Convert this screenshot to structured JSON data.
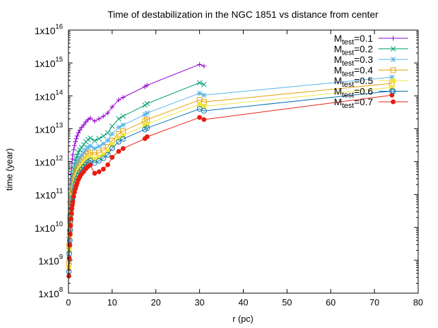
{
  "chart_data": {
    "type": "line",
    "title": "Time of destabilization in the NGC 1851 vs distance from center",
    "xlabel": "r (pc)",
    "ylabel": "time (year)",
    "xlim": [
      0,
      80
    ],
    "ylim": [
      100000000.0,
      1e+16
    ],
    "y_scale": "log",
    "grid": false,
    "legend_position": "top-right",
    "x_ticks": [
      "0",
      "10",
      "20",
      "30",
      "40",
      "50",
      "60",
      "70",
      "80"
    ],
    "y_ticks": [
      {
        "base": "1x10",
        "exp": "8"
      },
      {
        "base": "1x10",
        "exp": "9"
      },
      {
        "base": "1x10",
        "exp": "10"
      },
      {
        "base": "1x10",
        "exp": "11"
      },
      {
        "base": "1x10",
        "exp": "12"
      },
      {
        "base": "1x10",
        "exp": "13"
      },
      {
        "base": "1x10",
        "exp": "14"
      },
      {
        "base": "1x10",
        "exp": "15"
      },
      {
        "base": "1x10",
        "exp": "16"
      }
    ],
    "x": [
      0.1,
      0.2,
      0.3,
      0.4,
      0.5,
      0.6,
      0.7,
      0.8,
      0.9,
      1.0,
      1.2,
      1.4,
      1.6,
      1.8,
      2.0,
      2.3,
      2.6,
      3.0,
      3.5,
      4.0,
      4.5,
      5.0,
      6.0,
      7.0,
      8.0,
      9.0,
      10.0,
      11.5,
      12.5,
      17.5,
      18.0,
      30.0,
      31.0,
      74.0
    ],
    "series": [
      {
        "name_main": "M",
        "name_sub": "test",
        "name_tail": "=0.1",
        "color": "#9400d3",
        "marker": "plus",
        "values": [
          5000000000.0,
          20000000000.0,
          60000000000.0,
          140000000000.0,
          260000000000.0,
          420000000000.0,
          640000000000.0,
          900000000000.0,
          1200000000000.0,
          1600000000000.0,
          2300000000000.0,
          3100000000000.0,
          4000000000000.0,
          5000000000000.0,
          6000000000000.0,
          7500000000000.0,
          9000000000000.0,
          11000000000000.0,
          13000000000000.0,
          16000000000000.0,
          19000000000000.0,
          21000000000000.0,
          17000000000000.0,
          20000000000000.0,
          24000000000000.0,
          30000000000000.0,
          46000000000000.0,
          75000000000000.0,
          90000000000000.0,
          190000000000000.0,
          210000000000000.0,
          900000000000000.0,
          800000000000000.0,
          null
        ]
      },
      {
        "name_main": "M",
        "name_sub": "test",
        "name_tail": "=0.2",
        "color": "#009e73",
        "marker": "cross",
        "values": [
          2000000000.0,
          7000000000.0,
          20000000000.0,
          45000000000.0,
          80000000000.0,
          130000000000.0,
          190000000000.0,
          260000000000.0,
          330000000000.0,
          420000000000.0,
          600000000000.0,
          800000000000.0,
          1000000000000.0,
          1250000000000.0,
          1500000000000.0,
          1900000000000.0,
          2300000000000.0,
          2700000000000.0,
          3300000000000.0,
          4000000000000.0,
          4700000000000.0,
          5200000000000.0,
          4300000000000.0,
          5000000000000.0,
          6000000000000.0,
          7500000000000.0,
          12000000000000.0,
          20000000000000.0,
          24000000000000.0,
          52000000000000.0,
          58000000000000.0,
          250000000000000.0,
          220000000000000.0,
          null
        ]
      },
      {
        "name_main": "M",
        "name_sub": "test",
        "name_tail": "=0.3",
        "color": "#56b4e9",
        "marker": "star",
        "values": [
          1200000000.0,
          4000000000.0,
          10000000000.0,
          22000000000.0,
          40000000000.0,
          65000000000.0,
          100000000000.0,
          140000000000.0,
          180000000000.0,
          230000000000.0,
          330000000000.0,
          440000000000.0,
          560000000000.0,
          700000000000.0,
          840000000000.0,
          1050000000000.0,
          1300000000000.0,
          1550000000000.0,
          1900000000000.0,
          2300000000000.0,
          2700000000000.0,
          3000000000000.0,
          2500000000000.0,
          2900000000000.0,
          3500000000000.0,
          4400000000000.0,
          7000000000000.0,
          11000000000000.0,
          13000000000000.0,
          27000000000000.0,
          30000000000000.0,
          120000000000000.0,
          105000000000000.0,
          370000000000000.0
        ]
      },
      {
        "name_main": "M",
        "name_sub": "test",
        "name_tail": "=0.4",
        "color": "#e69f00",
        "marker": "box",
        "values": [
          800000000.0,
          2800000000.0,
          7000000000.0,
          15000000000.0,
          27000000000.0,
          43000000000.0,
          65000000000.0,
          90000000000.0,
          115000000000.0,
          145000000000.0,
          210000000000.0,
          280000000000.0,
          360000000000.0,
          450000000000.0,
          540000000000.0,
          680000000000.0,
          830000000000.0,
          1000000000000.0,
          1200000000000.0,
          1450000000000.0,
          1700000000000.0,
          1900000000000.0,
          1600000000000.0,
          1850000000000.0,
          2200000000000.0,
          2800000000000.0,
          4400000000000.0,
          7000000000000.0,
          8500000000000.0,
          17000000000000.0,
          19000000000000.0,
          75000000000000.0,
          65000000000000.0,
          240000000000000.0
        ]
      },
      {
        "name_main": "M",
        "name_sub": "test",
        "name_tail": "=0.5",
        "color": "#f0e442",
        "marker": "filled-box",
        "values": [
          600000000.0,
          2100000000.0,
          5200000000.0,
          11000000000.0,
          20000000000.0,
          32000000000.0,
          48000000000.0,
          66000000000.0,
          85000000000.0,
          107000000000.0,
          155000000000.0,
          210000000000.0,
          265000000000.0,
          330000000000.0,
          400000000000.0,
          500000000000.0,
          610000000000.0,
          740000000000.0,
          890000000000.0,
          1070000000000.0,
          1260000000000.0,
          1400000000000.0,
          1180000000000.0,
          1370000000000.0,
          1650000000000.0,
          2100000000000.0,
          3300000000000.0,
          5200000000000.0,
          6300000000000.0,
          12500000000000.0,
          14000000000000.0,
          55000000000000.0,
          48000000000000.0,
          180000000000000.0
        ]
      },
      {
        "name_main": "M",
        "name_sub": "test",
        "name_tail": "=0.6",
        "color": "#0072b2",
        "marker": "circle",
        "values": [
          450000000.0,
          1600000000.0,
          4000000000.0,
          8500000000.0,
          15500000000.0,
          25000000000.0,
          37000000000.0,
          51000000000.0,
          66000000000.0,
          83000000000.0,
          120000000000.0,
          160000000000.0,
          205000000000.0,
          255000000000.0,
          310000000000.0,
          390000000000.0,
          470000000000.0,
          570000000000.0,
          690000000000.0,
          830000000000.0,
          970000000000.0,
          1080000000000.0,
          910000000000.0,
          1060000000000.0,
          1270000000000.0,
          1600000000000.0,
          2550000000000.0,
          4000000000000.0,
          4900000000000.0,
          9500000000000.0,
          10500000000000.0,
          40000000000000.0,
          35000000000000.0,
          140000000000000.0
        ]
      },
      {
        "name_main": "M",
        "name_sub": "test",
        "name_tail": "=0.7",
        "color": "#e51e10",
        "marker": "filled-circle",
        "values": [
          330000000.0,
          1150000000.0,
          2900000000.0,
          6200000000.0,
          11300000000.0,
          18200000000.0,
          27000000000.0,
          37000000000.0,
          48000000000.0,
          60000000000.0,
          87000000000.0,
          117000000000.0,
          150000000000.0,
          186000000000.0,
          225000000000.0,
          285000000000.0,
          345000000000.0,
          420000000000.0,
          500000000000.0,
          610000000000.0,
          710000000000.0,
          790000000000.0,
          440000000000.0,
          490000000000.0,
          590000000000.0,
          800000000000.0,
          1350000000000.0,
          2050000000000.0,
          2500000000000.0,
          5000000000000.0,
          5700000000000.0,
          22000000000000.0,
          19000000000000.0,
          105000000000000.0
        ]
      }
    ]
  }
}
